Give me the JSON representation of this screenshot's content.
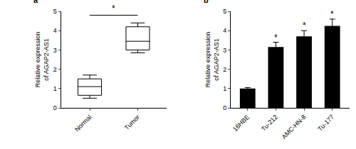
{
  "chart_data": [
    {
      "type": "box",
      "title": "a",
      "categories": [
        "Normal",
        "Tumor"
      ],
      "min": [
        0.5,
        2.85
      ],
      "q1": [
        0.65,
        3.0
      ],
      "median": [
        1.1,
        3.45
      ],
      "q3": [
        1.5,
        4.2
      ],
      "max": [
        1.7,
        4.4
      ],
      "ylabel": "Relative expression\nof AGAP2-AS1",
      "ylim": [
        0,
        5
      ],
      "yticks": [
        0,
        1,
        2,
        3,
        4,
        5
      ],
      "color": "#000000",
      "grid": false,
      "annotations": [
        {
          "text": "*",
          "from": "Normal",
          "to": "Tumor"
        }
      ]
    },
    {
      "type": "bar",
      "title": "b",
      "categories": [
        "16HBE",
        "Tu-212",
        "AMC-HN-8",
        "Tu-177"
      ],
      "values": [
        1.0,
        3.15,
        3.7,
        4.25
      ],
      "errors": [
        0.05,
        0.25,
        0.3,
        0.35
      ],
      "ylabel": "Relative expression\nof AGAP2-AS1",
      "ylim": [
        0,
        5
      ],
      "yticks": [
        0,
        1,
        2,
        3,
        4,
        5
      ],
      "color": "#000000",
      "grid": false,
      "annotations": [
        {
          "text": "*",
          "category": "Tu-212"
        },
        {
          "text": "*",
          "category": "AMC-HN-8"
        },
        {
          "text": "*",
          "category": "Tu-177"
        }
      ]
    }
  ]
}
